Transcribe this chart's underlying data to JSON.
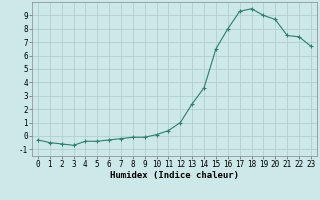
{
  "x": [
    0,
    1,
    2,
    3,
    4,
    5,
    6,
    7,
    8,
    9,
    10,
    11,
    12,
    13,
    14,
    15,
    16,
    17,
    18,
    19,
    20,
    21,
    22,
    23
  ],
  "y": [
    -0.3,
    -0.5,
    -0.6,
    -0.7,
    -0.4,
    -0.4,
    -0.3,
    -0.2,
    -0.1,
    -0.1,
    0.1,
    0.4,
    1.0,
    2.4,
    3.6,
    6.5,
    8.0,
    9.3,
    9.5,
    9.0,
    8.7,
    7.5,
    7.4,
    6.7
  ],
  "xlabel": "Humidex (Indice chaleur)",
  "xlim": [
    -0.5,
    23.5
  ],
  "ylim": [
    -1.5,
    10.0
  ],
  "yticks": [
    -1,
    0,
    1,
    2,
    3,
    4,
    5,
    6,
    7,
    8,
    9
  ],
  "xticks": [
    0,
    1,
    2,
    3,
    4,
    5,
    6,
    7,
    8,
    9,
    10,
    11,
    12,
    13,
    14,
    15,
    16,
    17,
    18,
    19,
    20,
    21,
    22,
    23
  ],
  "line_color": "#2e7d6e",
  "marker": "+",
  "bg_color": "#cce8e8",
  "grid_color": "#aacccc",
  "tick_label_fontsize": 5.5,
  "xlabel_fontsize": 6.5,
  "linewidth": 0.8,
  "markersize": 3.5,
  "markeredgewidth": 0.8
}
